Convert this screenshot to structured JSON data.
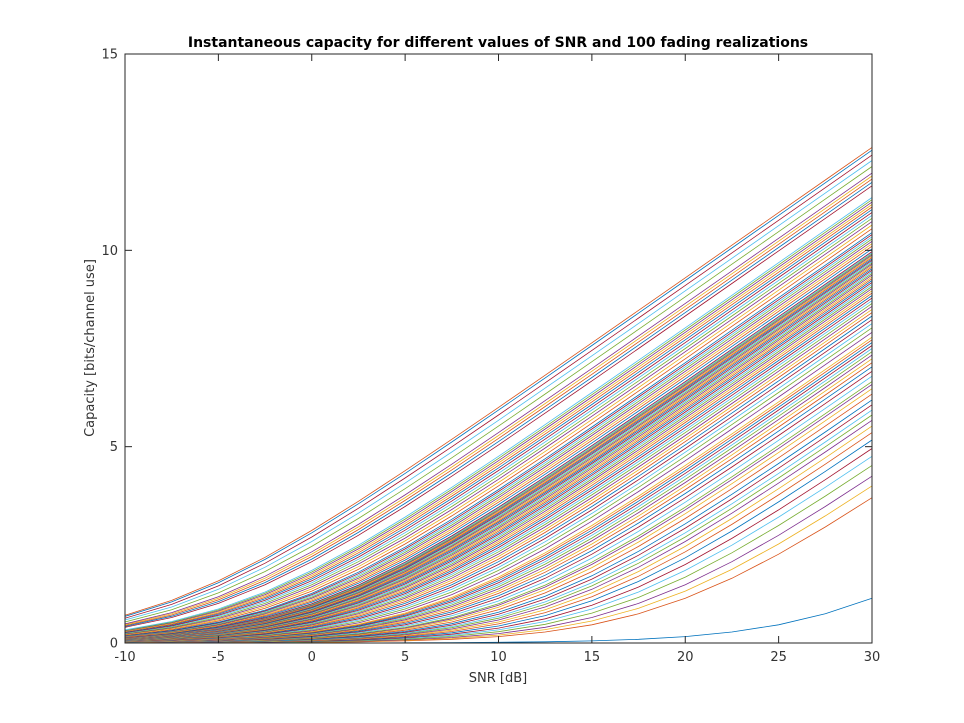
{
  "chart_data": {
    "type": "line",
    "title": "Instantaneous capacity for different values of SNR and 100 fading realizations",
    "xlabel": "SNR [dB]",
    "ylabel": "Capacity [bits/channel use]",
    "xlim": [
      -10,
      30
    ],
    "ylim": [
      0,
      15
    ],
    "xticks": [
      -10,
      -5,
      0,
      5,
      10,
      15,
      20,
      25,
      30
    ],
    "yticks": [
      0,
      5,
      10,
      15
    ],
    "grid": false,
    "legend": "none",
    "x": [
      -10,
      -7.5,
      -5,
      -2.5,
      0,
      2.5,
      5,
      7.5,
      10,
      12.5,
      15,
      17.5,
      20,
      22.5,
      25,
      27.5,
      30
    ],
    "series_note": "",
    "colors": [
      "#0072bd",
      "#d95319",
      "#edb120",
      "#7e2f8e",
      "#77ac30",
      "#4dbeee",
      "#a2142f"
    ],
    "gains": [
      0.0012,
      0.012,
      0.015,
      0.018,
      0.022,
      0.026,
      0.03,
      0.035,
      0.04,
      0.045,
      0.05,
      0.055,
      0.06,
      0.066,
      0.072,
      0.08,
      0.088,
      0.095,
      0.1,
      0.11,
      0.12,
      0.13,
      0.14,
      0.15,
      0.16,
      0.17,
      0.18,
      0.19,
      0.2,
      0.21,
      0.22,
      0.24,
      0.26,
      0.28,
      0.3,
      0.32,
      0.34,
      0.36,
      0.38,
      0.4,
      0.42,
      0.44,
      0.46,
      0.48,
      0.5,
      0.52,
      0.54,
      0.56,
      0.58,
      0.6,
      0.62,
      0.64,
      0.66,
      0.68,
      0.7,
      0.72,
      0.74,
      0.76,
      0.78,
      0.8,
      0.82,
      0.84,
      0.86,
      0.88,
      0.9,
      0.92,
      0.94,
      0.96,
      0.98,
      1.0,
      1.05,
      1.1,
      1.15,
      1.2,
      1.25,
      1.3,
      1.35,
      1.4,
      1.5,
      1.6,
      1.7,
      1.8,
      1.9,
      2.0,
      2.1,
      2.2,
      2.3,
      2.4,
      2.5,
      2.6,
      3.2,
      3.4,
      3.6,
      3.8,
      4.0,
      4.5,
      5.0,
      5.5,
      6.0,
      6.3
    ]
  }
}
